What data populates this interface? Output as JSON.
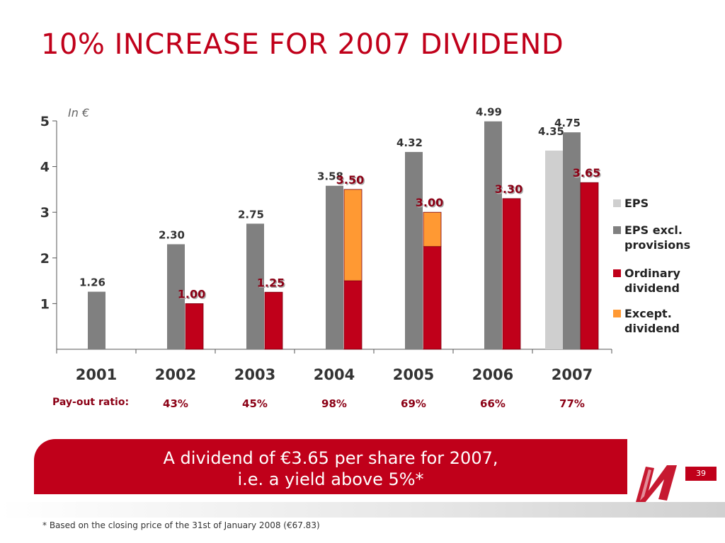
{
  "title": "10% INCREASE FOR 2007 DIVIDEND",
  "colors": {
    "accent": "#c0001a",
    "eps_excl": "#808080",
    "eps": "#cfcfcf",
    "except": "#ff9933"
  },
  "chart_data": {
    "type": "bar",
    "unit_label": "In €",
    "ylim": [
      0,
      5
    ],
    "y_ticks": [
      1,
      2,
      3,
      4,
      5
    ],
    "categories": [
      "2001",
      "2002",
      "2003",
      "2004",
      "2005",
      "2006",
      "2007"
    ],
    "series": [
      {
        "name": "EPS",
        "values": [
          null,
          null,
          null,
          null,
          null,
          null,
          4.35
        ],
        "labels": [
          "",
          "",
          "",
          "",
          "",
          "",
          "4.35"
        ]
      },
      {
        "name": "EPS excl. provisions",
        "values": [
          1.26,
          2.3,
          2.75,
          3.58,
          4.32,
          4.99,
          4.75
        ],
        "labels": [
          "1.26",
          "2.30",
          "2.75",
          "3.58",
          "4.32",
          "4.99",
          "4.75"
        ]
      },
      {
        "name": "Ordinary dividend",
        "values": [
          null,
          1.0,
          1.25,
          1.5,
          2.25,
          3.3,
          3.65
        ]
      },
      {
        "name": "Except. dividend",
        "values": [
          null,
          null,
          null,
          2.0,
          0.75,
          null,
          null
        ]
      }
    ],
    "dividend_totals": [
      "",
      "1.00",
      "1.25",
      "3.50",
      "3.00",
      "3.30",
      "3.65"
    ],
    "legend": [
      {
        "key": "eps",
        "lines": [
          "EPS"
        ]
      },
      {
        "key": "eps_excl",
        "lines": [
          "EPS excl.",
          "provisions"
        ]
      },
      {
        "key": "ordinary",
        "lines": [
          "Ordinary",
          "dividend"
        ]
      },
      {
        "key": "except",
        "lines": [
          "Except.",
          "dividend"
        ]
      }
    ],
    "legend_position": "right",
    "payout_label": "Pay-out ratio:",
    "payout_ratios": [
      "",
      "43%",
      "45%",
      "98%",
      "69%",
      "66%",
      "77%"
    ]
  },
  "callout": {
    "line1": "A dividend of €3.65 per share for 2007,",
    "line2": "i.e. a yield above 5%*"
  },
  "footnote": "* Based on the closing price of the 31st of January 2008 (€67.83)",
  "page_number": "39"
}
